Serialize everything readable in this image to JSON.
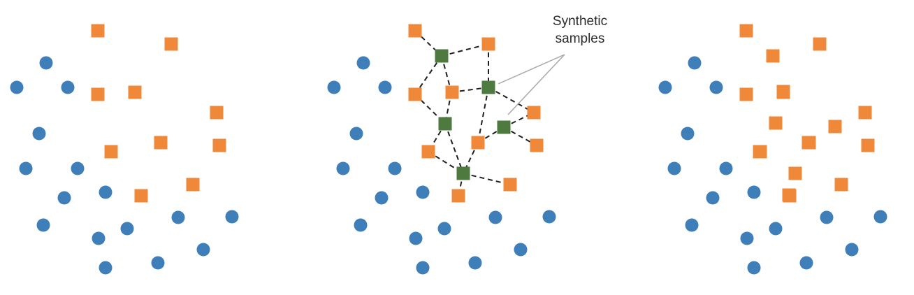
{
  "colors": {
    "majority": "#3f7fb9",
    "minority": "#f0883a",
    "synthetic": "#4e7a40",
    "edge": "#1f1f1f",
    "pointer": "#a8a8a8",
    "background": "#ffffff"
  },
  "annotation": {
    "line1": "Synthetic",
    "line2": "samples"
  },
  "panels": [
    {
      "name": "original",
      "show_connections": false,
      "show_synthetic": false,
      "synthetic_recolored": false
    },
    {
      "name": "interpolation",
      "show_connections": true,
      "show_synthetic": true,
      "synthetic_recolored": false
    },
    {
      "name": "result",
      "show_connections": false,
      "show_synthetic": true,
      "synthetic_recolored": true
    }
  ]
}
